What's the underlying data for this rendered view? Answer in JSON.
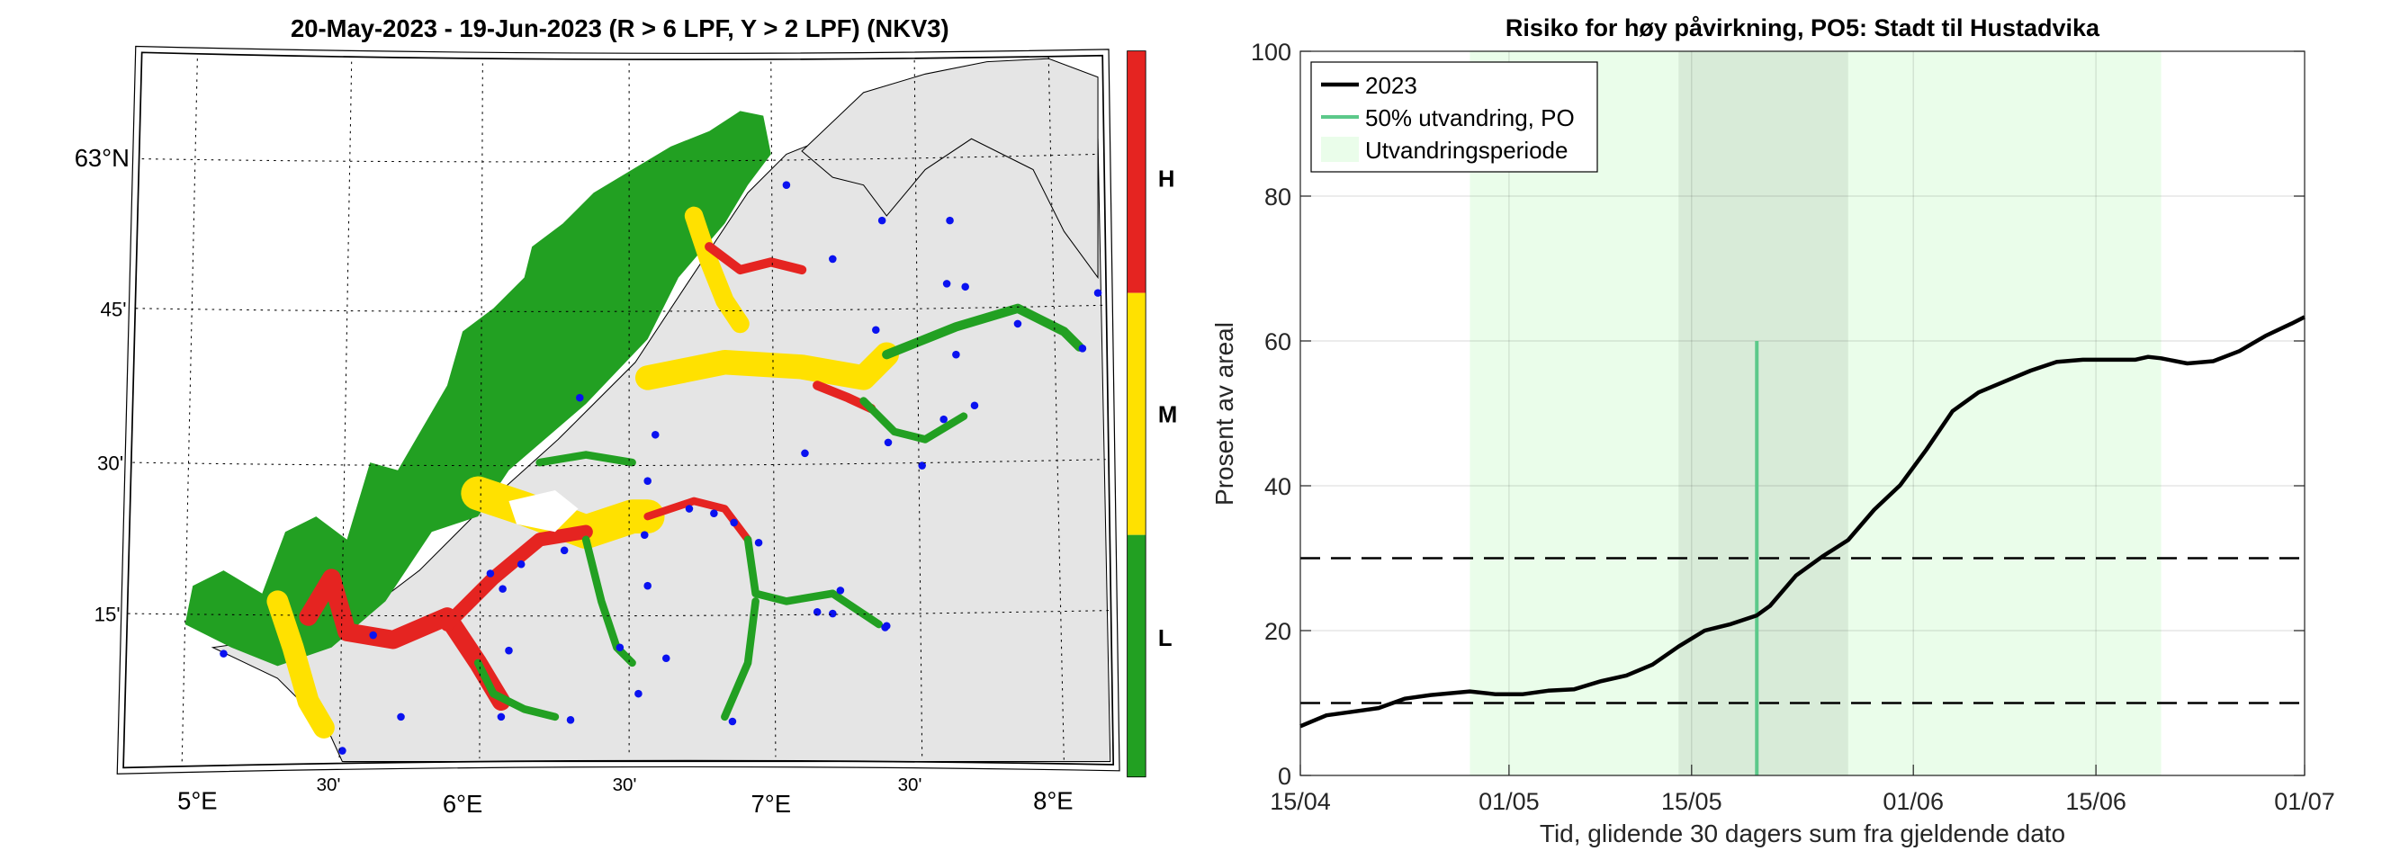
{
  "map": {
    "title": "20-May-2023  - 19-Jun-2023  (R > 6 LPF, Y > 2 LPF) (NKV3)",
    "lat_labels": [
      "63°N",
      "45'",
      "30'",
      "15'"
    ],
    "lon_labels": [
      "5°E",
      "30'",
      "6°E",
      "30'",
      "7°E",
      "30'",
      "8°E"
    ],
    "colorbar": {
      "label": "Prosent av areal",
      "levels": [
        {
          "label": "H",
          "color": "#e52421"
        },
        {
          "label": "M",
          "color": "#ffe100"
        },
        {
          "label": "L",
          "color": "#22a022"
        }
      ]
    },
    "colors": {
      "land": "#e5e5e5",
      "sea": "#ffffff",
      "stations": "#0a12f0"
    }
  },
  "chart_data": {
    "type": "line",
    "title": "Risiko for høy påvirkning, PO5: Stadt til Hustadvika",
    "xlabel": "Tid, glidende 30 dagers sum fra gjeldende dato",
    "ylabel": "Prosent av areal",
    "xlim": [
      "2023-04-15",
      "2023-07-01"
    ],
    "ylim": [
      0,
      100
    ],
    "xticks": [
      "15/04",
      "01/05",
      "15/05",
      "01/06",
      "15/06",
      "01/07"
    ],
    "xtick_dates": [
      "2023-04-15",
      "2023-05-01",
      "2023-05-15",
      "2023-06-01",
      "2023-06-15",
      "2023-07-01"
    ],
    "yticks": [
      0,
      20,
      40,
      60,
      80,
      100
    ],
    "grid": true,
    "legend": {
      "position": "top-left",
      "entries": [
        "2023",
        "50% utvandring, PO",
        "Utvandringsperiode"
      ]
    },
    "series": [
      {
        "name": "2023",
        "color": "#000000",
        "x": [
          "2023-04-15",
          "2023-04-17",
          "2023-04-19",
          "2023-04-21",
          "2023-04-23",
          "2023-04-25",
          "2023-04-28",
          "2023-04-30",
          "2023-05-02",
          "2023-05-04",
          "2023-05-06",
          "2023-05-08",
          "2023-05-10",
          "2023-05-12",
          "2023-05-14",
          "2023-05-16",
          "2023-05-18",
          "2023-05-20",
          "2023-05-21",
          "2023-05-23",
          "2023-05-25",
          "2023-05-27",
          "2023-05-29",
          "2023-05-31",
          "2023-06-02",
          "2023-06-04",
          "2023-06-06",
          "2023-06-08",
          "2023-06-10",
          "2023-06-12",
          "2023-06-14",
          "2023-06-16",
          "2023-06-18",
          "2023-06-19",
          "2023-06-20",
          "2023-06-22",
          "2023-06-24",
          "2023-06-26",
          "2023-06-28",
          "2023-06-30",
          "2023-07-01"
        ],
        "y": [
          6.8,
          8.3,
          8.8,
          9.3,
          10.6,
          11.1,
          11.6,
          11.2,
          11.2,
          11.7,
          11.9,
          13.0,
          13.8,
          15.3,
          17.8,
          20.0,
          20.9,
          22.1,
          23.4,
          27.6,
          30.2,
          32.5,
          36.7,
          40.1,
          45.0,
          50.3,
          52.9,
          54.4,
          55.9,
          57.1,
          57.4,
          57.4,
          57.4,
          57.8,
          57.6,
          56.9,
          57.2,
          58.6,
          60.7,
          62.4,
          63.3
        ]
      }
    ],
    "hlines": [
      {
        "y": 10,
        "style": "dashed",
        "color": "#000000"
      },
      {
        "y": 30,
        "style": "dashed",
        "color": "#000000"
      }
    ],
    "vline": {
      "name": "50% utvandring, PO",
      "x": "2023-05-20",
      "y_range": [
        0,
        60
      ],
      "color": "#5cc98a"
    },
    "spans": [
      {
        "name": "Utvandringsperiode",
        "x": [
          "2023-04-28",
          "2023-06-20"
        ],
        "color": "#eafdea"
      },
      {
        "x": [
          "2023-05-14",
          "2023-05-27"
        ],
        "color": "#d8ebd8"
      }
    ]
  }
}
